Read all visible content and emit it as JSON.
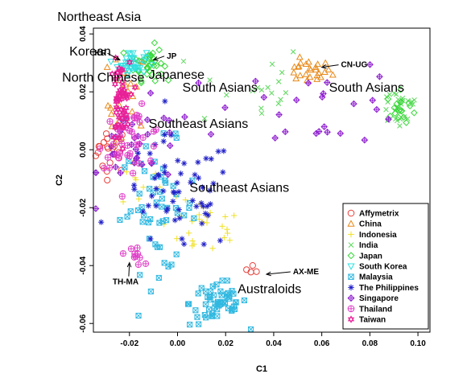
{
  "chart_data": {
    "type": "scatter",
    "xlabel": "C1",
    "ylabel": "C2",
    "xlim": [
      -0.035,
      0.105
    ],
    "ylim": [
      -0.063,
      0.042
    ],
    "x_ticks": [
      -0.02,
      0.0,
      0.02,
      0.04,
      0.06,
      0.08,
      0.1
    ],
    "x_tick_labels": [
      "-0.02",
      "0.00",
      "0.02",
      "0.04",
      "0.06",
      "0.08",
      "0.10"
    ],
    "y_ticks": [
      -0.06,
      -0.04,
      -0.02,
      0.0,
      0.02,
      0.04
    ],
    "y_tick_labels": [
      "-0.06",
      "-0.04",
      "-0.02",
      "0.00",
      "0.02",
      "0.04"
    ],
    "grid": false,
    "legend_position": "bottom-right",
    "series": [
      {
        "name": "Affymetrix",
        "color": "#e8403a",
        "marker": "circle",
        "clusters": [
          [
            -0.028,
            0.0,
            0.004,
            0.004,
            22
          ],
          [
            0.032,
            -0.042,
            0.002,
            0.001,
            4
          ]
        ]
      },
      {
        "name": "China",
        "color": "#e88a1a",
        "marker": "triangle-up",
        "clusters": [
          [
            -0.021,
            0.016,
            0.004,
            0.01,
            28
          ],
          [
            0.054,
            0.027,
            0.005,
            0.002,
            26
          ]
        ]
      },
      {
        "name": "Indonesia",
        "color": "#f0e020",
        "marker": "plus",
        "clusters": [
          [
            0.01,
            -0.027,
            0.009,
            0.005,
            26
          ],
          [
            -0.015,
            -0.012,
            0.004,
            0.004,
            8
          ]
        ]
      },
      {
        "name": "India",
        "color": "#5cd85c",
        "marker": "x",
        "clusters": [
          [
            0.03,
            0.022,
            0.012,
            0.008,
            18
          ],
          [
            0.092,
            0.015,
            0.005,
            0.004,
            26
          ]
        ]
      },
      {
        "name": "Japan",
        "color": "#38d838",
        "marker": "diamond",
        "clusters": [
          [
            -0.012,
            0.03,
            0.003,
            0.003,
            40
          ],
          [
            0.093,
            0.014,
            0.003,
            0.003,
            18
          ]
        ]
      },
      {
        "name": "South Korea",
        "color": "#30e0e0",
        "marker": "triangle-down",
        "clusters": [
          [
            -0.019,
            0.03,
            0.003,
            0.002,
            40
          ]
        ]
      },
      {
        "name": "Malaysia",
        "color": "#30b8e0",
        "marker": "square-x",
        "clusters": [
          [
            -0.008,
            -0.02,
            0.008,
            0.011,
            55
          ],
          [
            0.017,
            -0.053,
            0.006,
            0.004,
            55
          ]
        ]
      },
      {
        "name": "The Philippines",
        "color": "#2020c8",
        "marker": "asterisk",
        "clusters": [
          [
            0.0,
            -0.016,
            0.012,
            0.01,
            60
          ]
        ]
      },
      {
        "name": "Singapore",
        "color": "#9020d0",
        "marker": "diamond-plus",
        "clusters": [
          [
            -0.015,
            0.0,
            0.012,
            0.008,
            35
          ],
          [
            0.06,
            0.016,
            0.018,
            0.007,
            24
          ]
        ]
      },
      {
        "name": "Thailand",
        "color": "#e040c8",
        "marker": "circle-plus",
        "clusters": [
          [
            -0.019,
            0.004,
            0.007,
            0.005,
            40
          ],
          [
            -0.018,
            -0.036,
            0.002,
            0.002,
            10
          ]
        ]
      },
      {
        "name": "Taiwan",
        "color": "#e82098",
        "marker": "hexagram",
        "clusters": [
          [
            -0.024,
            0.016,
            0.002,
            0.007,
            55
          ]
        ]
      }
    ],
    "annotations": [
      {
        "text": "Northeast Asia",
        "x": -0.05,
        "y": 0.0445,
        "kind": "region"
      },
      {
        "text": "Korean",
        "x": -0.045,
        "y": 0.0325,
        "kind": "region"
      },
      {
        "text": "North Chinese",
        "x": -0.048,
        "y": 0.0235,
        "kind": "region"
      },
      {
        "text": "Japanese",
        "x": -0.012,
        "y": 0.0245,
        "kind": "region"
      },
      {
        "text": "South Asians",
        "x": 0.002,
        "y": 0.02,
        "kind": "region"
      },
      {
        "text": "South Asians",
        "x": 0.063,
        "y": 0.02,
        "kind": "region"
      },
      {
        "text": "Southeast Asians",
        "x": -0.012,
        "y": 0.0075,
        "kind": "region"
      },
      {
        "text": "Southeast Asians",
        "x": 0.005,
        "y": -0.0145,
        "kind": "region"
      },
      {
        "text": "Australoids",
        "x": 0.025,
        "y": -0.0495,
        "kind": "region"
      },
      {
        "text": "KR",
        "x": -0.0345,
        "y": 0.0325,
        "kind": "tag",
        "arrow_to": [
          -0.024,
          0.031
        ]
      },
      {
        "text": "JP",
        "x": -0.0045,
        "y": 0.0315,
        "kind": "tag",
        "arrow_to": [
          -0.01,
          0.031
        ]
      },
      {
        "text": "CN-UG",
        "x": 0.068,
        "y": 0.0285,
        "kind": "tag",
        "arrow_to": [
          0.06,
          0.0285
        ]
      },
      {
        "text": "AX-ME",
        "x": 0.048,
        "y": -0.043,
        "kind": "tag",
        "arrow_to": [
          0.037,
          -0.043
        ]
      },
      {
        "text": "TH-MA",
        "x": -0.027,
        "y": -0.0465,
        "kind": "tag",
        "arrow_to": [
          -0.02,
          -0.039
        ]
      }
    ]
  }
}
